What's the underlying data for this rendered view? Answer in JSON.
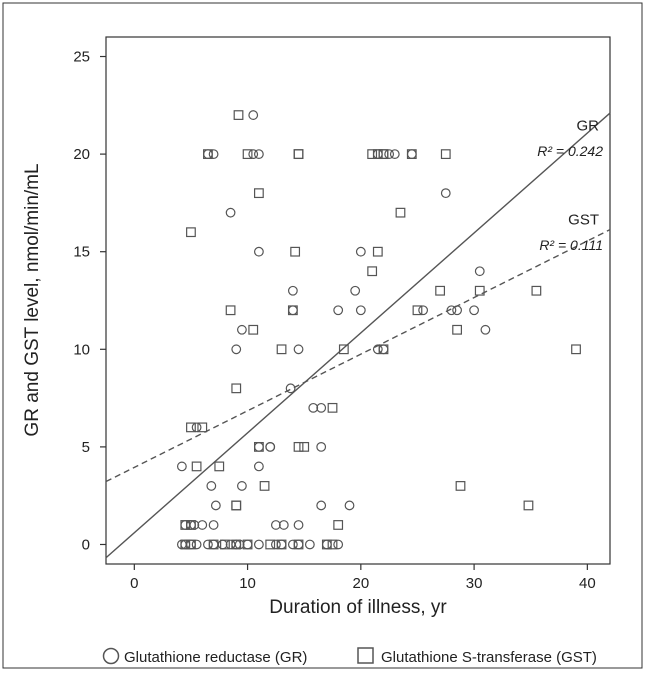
{
  "chart_data": {
    "type": "scatter",
    "xlabel": "Duration of illness, yr",
    "ylabel": "GR and GST level, nmol/min/mL",
    "xlim": [
      -2.5,
      42
    ],
    "ylim": [
      -1,
      26
    ],
    "xticks": [
      0,
      10,
      20,
      30,
      40
    ],
    "yticks": [
      0,
      5,
      10,
      15,
      20,
      25
    ],
    "grid": false,
    "legend_position": "bottom",
    "series": [
      {
        "name": "Glutathione reductase (GR)",
        "marker": "circle",
        "color": "#555555",
        "x": [
          4.2,
          4.5,
          5.0,
          5.5,
          6.5,
          7.0,
          7.8,
          8.5,
          9.0,
          9.3,
          10.0,
          11.0,
          12.5,
          13.0,
          14.0,
          14.5,
          15.5,
          17.0,
          18.0,
          5.0,
          6.0,
          4.5,
          5.3,
          7.0,
          4.2,
          6.8,
          7.2,
          5.5,
          9.5,
          12.5,
          13.2,
          14.5,
          16.5,
          19.0,
          11.0,
          11.0,
          13.8,
          15.8,
          16.5,
          9.0,
          9.5,
          14.5,
          21.5,
          22.0,
          30.0,
          31.0,
          12.0,
          12.0,
          16.5,
          20.0,
          18.0,
          19.5,
          25.5,
          28.5,
          14.0,
          14.0,
          28.0,
          30.5,
          11.0,
          20.0,
          27.5,
          8.5,
          6.5,
          7.0,
          10.5,
          11.0,
          21.5,
          22.5,
          23.0,
          24.5,
          10.5
        ],
        "y": [
          0,
          0,
          0,
          0,
          0,
          0,
          0,
          0,
          0,
          0,
          0,
          0,
          0,
          0,
          0,
          0,
          0,
          0,
          0,
          1,
          1,
          1,
          1,
          1,
          4,
          3,
          2,
          6,
          3,
          1,
          1,
          1,
          2,
          2,
          5,
          4,
          8,
          7,
          7,
          10,
          11,
          10,
          10,
          10,
          12,
          11,
          5,
          5,
          5,
          12,
          12,
          13,
          12,
          12,
          12,
          13,
          12,
          14,
          15,
          15,
          18,
          17,
          20,
          20,
          20,
          20,
          20,
          20,
          20,
          20,
          22
        ]
      },
      {
        "name": "Glutathione S-transferase (GST)",
        "marker": "square",
        "color": "#555555",
        "x": [
          4.5,
          5.0,
          7.0,
          8.0,
          9.0,
          10.0,
          12.0,
          13.0,
          14.5,
          17.0,
          17.5,
          4.5,
          5.0,
          18.0,
          9.0,
          9.0,
          7.5,
          5.5,
          5.0,
          6.0,
          11.5,
          11.0,
          14.5,
          15.0,
          17.5,
          28.8,
          34.8,
          9.0,
          13.0,
          18.5,
          22.0,
          10.5,
          8.5,
          14.0,
          25.0,
          28.5,
          30.5,
          35.5,
          14.2,
          23.5,
          21.0,
          39.0,
          5.0,
          21.5,
          27.0,
          11.0,
          22.0,
          14.5,
          6.5,
          10.0,
          14.5,
          21.0,
          21.5,
          22.0,
          24.5,
          27.5,
          9.2
        ],
        "y": [
          0,
          0,
          0,
          0,
          0,
          0,
          0,
          0,
          0,
          0,
          0,
          1,
          1,
          1,
          2,
          2,
          4,
          4,
          6,
          6,
          3,
          5,
          5,
          5,
          7,
          3,
          2,
          8,
          10,
          10,
          10,
          11,
          12,
          12,
          12,
          11,
          13,
          13,
          15,
          17,
          14,
          10,
          16,
          15,
          13,
          18,
          20,
          20,
          20,
          20,
          20,
          20,
          20,
          20,
          20,
          20,
          22
        ]
      }
    ],
    "fits": [
      {
        "label": "GR",
        "r2_label": "R² = 0.242",
        "slope": 0.512,
        "intercept": 0.6,
        "style": "solid"
      },
      {
        "label": "GST",
        "r2_label": "R² = 0.111",
        "slope": 0.29,
        "intercept": 3.95,
        "style": "dashed"
      }
    ]
  },
  "legend": {
    "items": [
      {
        "label": "Glutathione reductase (GR)",
        "marker": "circle"
      },
      {
        "label": "Glutathione S-transferase (GST)",
        "marker": "square"
      }
    ]
  }
}
